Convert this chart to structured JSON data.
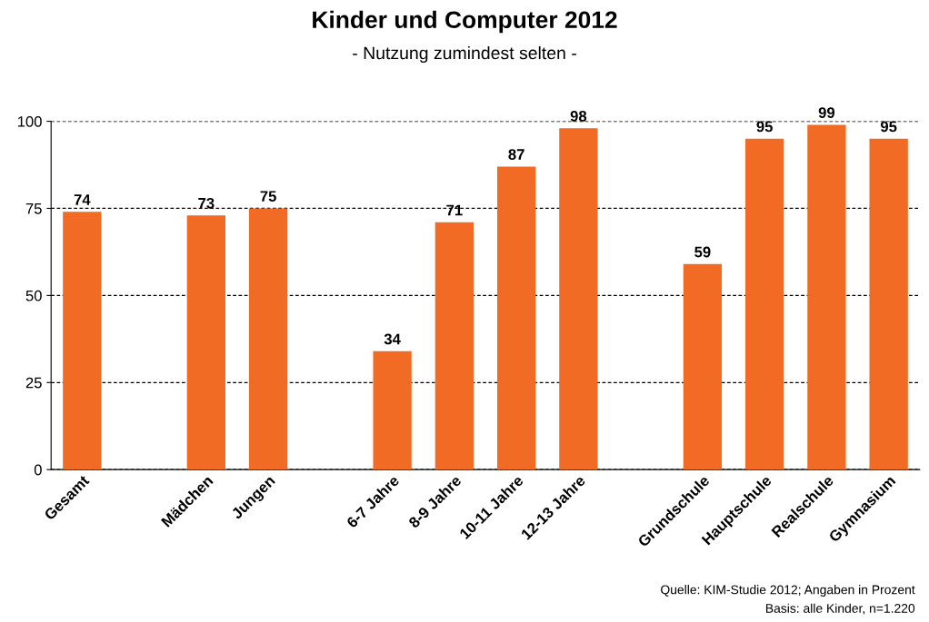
{
  "chart_data": {
    "type": "bar",
    "title": "Kinder und Computer 2012",
    "subtitle": "- Nutzung zumindest selten -",
    "categories": [
      "Gesamt",
      null,
      "Mädchen",
      "Jungen",
      null,
      "6-7 Jahre",
      "8-9 Jahre",
      "10-11 Jahre",
      "12-13 Jahre",
      null,
      "Grundschule",
      "Hauptschule",
      "Realschule",
      "Gymnasium"
    ],
    "values": [
      74,
      null,
      73,
      75,
      null,
      34,
      71,
      87,
      98,
      null,
      59,
      95,
      99,
      95
    ],
    "color": "#f26b24",
    "ylim": [
      0,
      100
    ],
    "yticks": [
      0,
      25,
      50,
      75,
      100
    ],
    "grid": "y",
    "data_labels": true,
    "annotations": [
      "Quelle: KIM-Studie 2012; Angaben in Prozent",
      "Basis: alle Kinder, n=1.220"
    ]
  }
}
